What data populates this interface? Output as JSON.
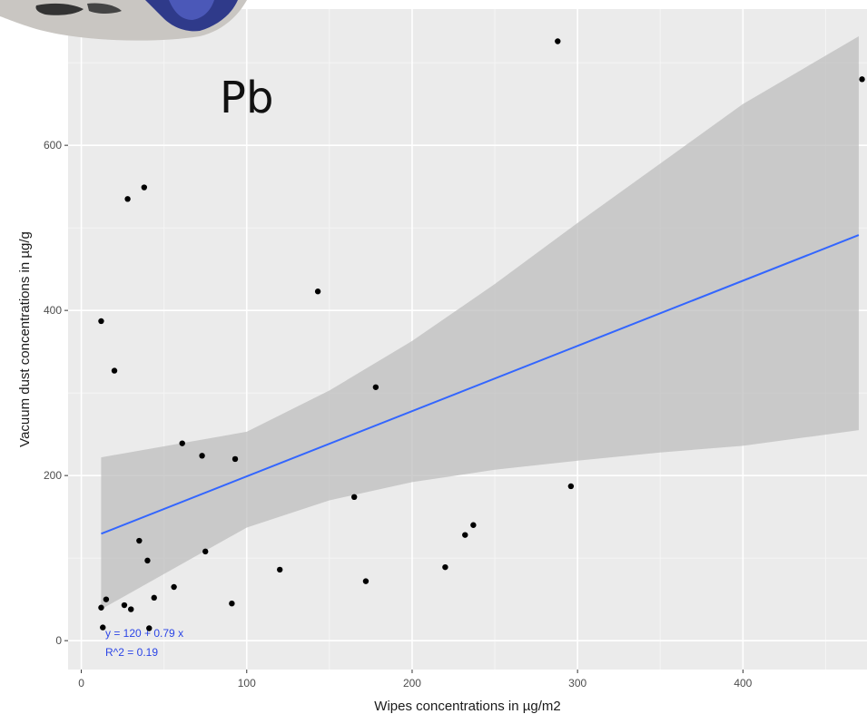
{
  "chart_data": {
    "type": "scatter",
    "panel_label": "Pb",
    "xlabel": "Wipes concentrations in µg/m2",
    "ylabel": "Vacuum dust concentrations in µg/g",
    "xlim": [
      -8,
      475
    ],
    "ylim": [
      -35,
      765
    ],
    "x_ticks": [
      0,
      100,
      200,
      300,
      400
    ],
    "y_ticks": [
      0,
      200,
      400,
      600
    ],
    "grid": true,
    "points": [
      {
        "x": 12,
        "y": 387
      },
      {
        "x": 12,
        "y": 40
      },
      {
        "x": 13,
        "y": 16
      },
      {
        "x": 15,
        "y": 50
      },
      {
        "x": 20,
        "y": 327
      },
      {
        "x": 26,
        "y": 43
      },
      {
        "x": 28,
        "y": 535
      },
      {
        "x": 30,
        "y": 38
      },
      {
        "x": 35,
        "y": 121
      },
      {
        "x": 38,
        "y": 549
      },
      {
        "x": 40,
        "y": 97
      },
      {
        "x": 41,
        "y": 15
      },
      {
        "x": 44,
        "y": 52
      },
      {
        "x": 56,
        "y": 65
      },
      {
        "x": 61,
        "y": 239
      },
      {
        "x": 73,
        "y": 224
      },
      {
        "x": 75,
        "y": 108
      },
      {
        "x": 91,
        "y": 45
      },
      {
        "x": 93,
        "y": 220
      },
      {
        "x": 120,
        "y": 86
      },
      {
        "x": 143,
        "y": 423
      },
      {
        "x": 165,
        "y": 174
      },
      {
        "x": 172,
        "y": 72
      },
      {
        "x": 178,
        "y": 307
      },
      {
        "x": 220,
        "y": 89
      },
      {
        "x": 232,
        "y": 128
      },
      {
        "x": 237,
        "y": 140
      },
      {
        "x": 288,
        "y": 726
      },
      {
        "x": 296,
        "y": 187
      },
      {
        "x": 472,
        "y": 680
      }
    ],
    "fit": {
      "intercept": 120,
      "slope": 0.79,
      "x_range": [
        12,
        470
      ],
      "color": "#3366ff"
    },
    "confidence_band": [
      {
        "x": 12,
        "lower": 38,
        "upper": 222
      },
      {
        "x": 100,
        "lower": 137,
        "upper": 253
      },
      {
        "x": 150,
        "lower": 170,
        "upper": 303
      },
      {
        "x": 200,
        "lower": 192,
        "upper": 363
      },
      {
        "x": 250,
        "lower": 207,
        "upper": 432
      },
      {
        "x": 300,
        "lower": 218,
        "upper": 506
      },
      {
        "x": 350,
        "lower": 228,
        "upper": 578
      },
      {
        "x": 400,
        "lower": 236,
        "upper": 650
      },
      {
        "x": 470,
        "lower": 255,
        "upper": 732
      }
    ],
    "equation_label": "y = 120 + 0.79  x",
    "r2_label": "R^2 = 0.19",
    "colors": {
      "panel": "#ebebeb",
      "grid_major": "#ffffff",
      "grid_minor": "#f5f5f5",
      "band": "#bdbdbd",
      "point": "#000000",
      "line": "#3366ff",
      "equation": "#2b45e6"
    }
  }
}
